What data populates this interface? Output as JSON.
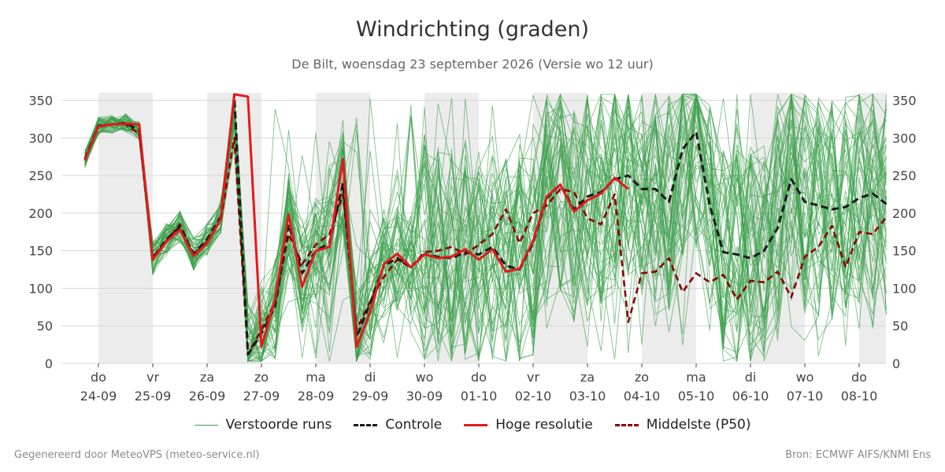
{
  "title": "Windrichting (graden)",
  "subtitle": "De Bilt, woensdag 23 september 2026 (Versie wo 12 uur)",
  "footer": {
    "left": "Gegenereerd door MeteoVPS (meteo-service.nl)",
    "right": "Bron: ECMWF AIFS/KNMI Ens"
  },
  "legend": [
    {
      "label": "Verstoorde runs",
      "color": "#3aa04a",
      "style": "thin"
    },
    {
      "label": "Controle",
      "color": "#1a1a1a",
      "style": "dashed"
    },
    {
      "label": "Hoge resolutie",
      "color": "#e31a1c",
      "style": "solid"
    },
    {
      "label": "Middelste (P50)",
      "color": "#8b0000",
      "style": "dashed"
    }
  ],
  "chart_data": {
    "type": "line",
    "ylim": [
      0,
      360
    ],
    "xlim": [
      -0.25,
      14.5
    ],
    "yticks": [
      0,
      50,
      100,
      150,
      200,
      250,
      300,
      350
    ],
    "grid": "horizontal",
    "legend_placement": "bottom",
    "day_ticks": [
      {
        "day": "do",
        "date": "24-09"
      },
      {
        "day": "vr",
        "date": "25-09"
      },
      {
        "day": "za",
        "date": "26-09"
      },
      {
        "day": "zo",
        "date": "27-09"
      },
      {
        "day": "ma",
        "date": "28-09"
      },
      {
        "day": "di",
        "date": "29-09"
      },
      {
        "day": "wo",
        "date": "30-09"
      },
      {
        "day": "do",
        "date": "01-10"
      },
      {
        "day": "vr",
        "date": "02-10"
      },
      {
        "day": "za",
        "date": "03-10"
      },
      {
        "day": "zo",
        "date": "04-10"
      },
      {
        "day": "ma",
        "date": "05-10"
      },
      {
        "day": "di",
        "date": "06-10"
      },
      {
        "day": "wo",
        "date": "07-10"
      },
      {
        "day": "do",
        "date": "08-10"
      }
    ],
    "shaded_days": [
      0,
      2,
      4,
      6,
      8,
      10,
      12,
      14
    ],
    "series": [
      {
        "name": "Controle",
        "x": [
          -0.25,
          0,
          0.25,
          0.5,
          0.75,
          1,
          1.25,
          1.5,
          1.75,
          2,
          2.25,
          2.5,
          2.75,
          3,
          3.25,
          3.5,
          3.75,
          4,
          4.25,
          4.5,
          4.75,
          5,
          5.25,
          5.5,
          5.75,
          6,
          6.25,
          6.5,
          6.75,
          7,
          7.25,
          7.5,
          7.75,
          8,
          8.25,
          8.5,
          8.75,
          9,
          9.25,
          9.5,
          9.75,
          10,
          10.25,
          10.5,
          10.75,
          11,
          11.25,
          11.5,
          11.75,
          12,
          12.25,
          12.5,
          12.75,
          13,
          13.25,
          13.5,
          13.75,
          14,
          14.25,
          14.5
        ],
        "values": [
          272,
          316,
          318,
          320,
          310,
          140,
          165,
          182,
          146,
          165,
          195,
          356,
          12,
          40,
          75,
          185,
          120,
          150,
          160,
          240,
          35,
          80,
          130,
          140,
          128,
          145,
          142,
          140,
          148,
          145,
          155,
          130,
          125,
          160,
          220,
          238,
          205,
          222,
          228,
          245,
          250,
          232,
          232,
          215,
          285,
          308,
          210,
          148,
          145,
          140,
          150,
          180,
          245,
          215,
          210,
          205,
          208,
          220,
          226,
          212
        ]
      },
      {
        "name": "Hoge resolutie",
        "x": [
          -0.25,
          0,
          0.25,
          0.5,
          0.75,
          1,
          1.25,
          1.5,
          1.75,
          2,
          2.25,
          2.5,
          2.75,
          3,
          3.25,
          3.5,
          3.75,
          4,
          4.25,
          4.5,
          4.75,
          5,
          5.25,
          5.5,
          5.75,
          6,
          6.25,
          6.5,
          6.75,
          7,
          7.25,
          7.5,
          7.75,
          8,
          8.25,
          8.5,
          8.75,
          9,
          9.25,
          9.5,
          9.75
        ],
        "values": [
          270,
          315,
          318,
          319,
          318,
          138,
          162,
          178,
          143,
          160,
          192,
          358,
          355,
          22,
          85,
          198,
          102,
          150,
          155,
          272,
          22,
          68,
          132,
          146,
          128,
          145,
          140,
          142,
          152,
          138,
          152,
          122,
          126,
          163,
          222,
          238,
          202,
          217,
          226,
          247,
          232
        ]
      },
      {
        "name": "Middelste (P50)",
        "x": [
          -0.25,
          0,
          0.25,
          0.5,
          0.75,
          1,
          1.25,
          1.5,
          1.75,
          2,
          2.25,
          2.5,
          2.75,
          3,
          3.25,
          3.5,
          3.75,
          4,
          4.25,
          4.5,
          4.75,
          5,
          5.25,
          5.5,
          5.75,
          6,
          6.25,
          6.5,
          6.75,
          7,
          7.25,
          7.5,
          7.75,
          8,
          8.25,
          8.5,
          8.75,
          9,
          9.25,
          9.5,
          9.75,
          10,
          10.25,
          10.5,
          10.75,
          11,
          11.25,
          11.5,
          11.75,
          12,
          12.25,
          12.5,
          12.75,
          13,
          13.25,
          13.5,
          13.75,
          14,
          14.25,
          14.5
        ],
        "values": [
          270,
          316,
          318,
          318,
          305,
          140,
          163,
          185,
          145,
          162,
          190,
          300,
          12,
          45,
          82,
          172,
          132,
          158,
          172,
          225,
          45,
          82,
          115,
          138,
          128,
          148,
          150,
          155,
          145,
          158,
          172,
          205,
          160,
          200,
          210,
          232,
          228,
          193,
          185,
          225,
          55,
          120,
          122,
          140,
          95,
          120,
          108,
          118,
          85,
          110,
          108,
          122,
          88,
          142,
          155,
          183,
          128,
          175,
          172,
          195
        ]
      }
    ],
    "perturbed_runs": {
      "count": 50,
      "description_source": "Verstoorde runs"
    }
  }
}
